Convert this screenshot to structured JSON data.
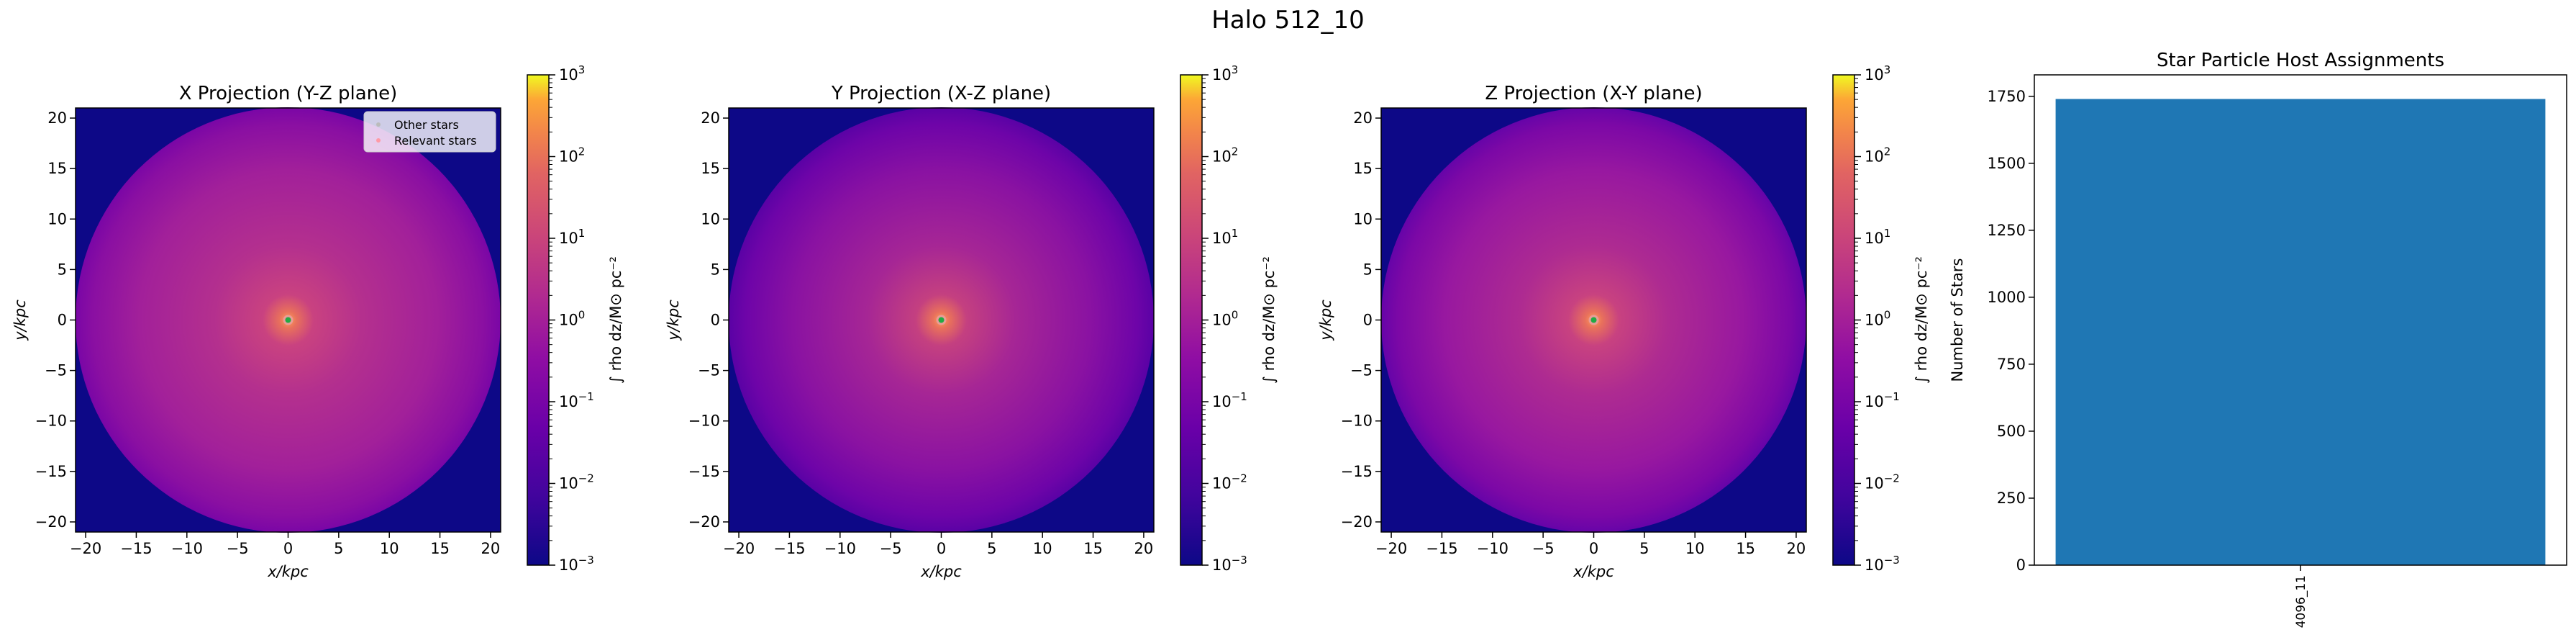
{
  "figure": {
    "title": "Halo 512_10"
  },
  "colorbar_label": "∫ rho dz/M⊙ pc⁻²",
  "colorscale": {
    "type": "log",
    "min_exp": -3,
    "max_exp": 3,
    "cmap": "plasma",
    "tick_base": "10",
    "tick_exponents": [
      "−3",
      "−2",
      "−1",
      "0",
      "1",
      "2",
      "3"
    ]
  },
  "legend": {
    "items": [
      {
        "label": "Other stars",
        "color": "#bbbbbb"
      },
      {
        "label": "Relevant stars",
        "color": "#ff9aa6"
      }
    ]
  },
  "chart_data": [
    {
      "type": "heatmap",
      "title": "X Projection (Y-Z plane)",
      "xlabel": "x/kpc",
      "ylabel": "y/kpc",
      "xlim": [
        -21,
        21
      ],
      "ylim": [
        -21,
        21
      ],
      "xticks": [
        -20,
        -15,
        -10,
        -5,
        0,
        5,
        10,
        15,
        20
      ],
      "yticks": [
        -20,
        -15,
        -10,
        -5,
        0,
        5,
        10,
        15,
        20
      ],
      "halo_radius_kpc": 21,
      "center_kpc": [
        0,
        0
      ],
      "marker": "green dot at center",
      "legend": "top-right"
    },
    {
      "type": "heatmap",
      "title": "Y Projection (X-Z plane)",
      "xlabel": "x/kpc",
      "ylabel": "y/kpc",
      "xlim": [
        -21,
        21
      ],
      "ylim": [
        -21,
        21
      ],
      "xticks": [
        -20,
        -15,
        -10,
        -5,
        0,
        5,
        10,
        15,
        20
      ],
      "yticks": [
        -20,
        -15,
        -10,
        -5,
        0,
        5,
        10,
        15,
        20
      ],
      "halo_radius_kpc": 21,
      "center_kpc": [
        0,
        0
      ],
      "marker": "green dot at center"
    },
    {
      "type": "heatmap",
      "title": "Z Projection (X-Y plane)",
      "xlabel": "x/kpc",
      "ylabel": "y/kpc",
      "xlim": [
        -21,
        21
      ],
      "ylim": [
        -21,
        21
      ],
      "xticks": [
        -20,
        -15,
        -10,
        -5,
        0,
        5,
        10,
        15,
        20
      ],
      "yticks": [
        -20,
        -15,
        -10,
        -5,
        0,
        5,
        10,
        15,
        20
      ],
      "halo_radius_kpc": 21,
      "center_kpc": [
        0,
        0
      ],
      "marker": "green dot at center"
    },
    {
      "type": "bar",
      "title": "Star Particle Host Assignments",
      "xlabel": "",
      "ylabel": "Number of Stars",
      "categories": [
        "4096_11"
      ],
      "values": [
        1740
      ],
      "ylim": [
        0,
        1830
      ],
      "yticks": [
        0,
        250,
        500,
        750,
        1000,
        1250,
        1500,
        1750
      ],
      "color": "#1f77b4"
    }
  ]
}
